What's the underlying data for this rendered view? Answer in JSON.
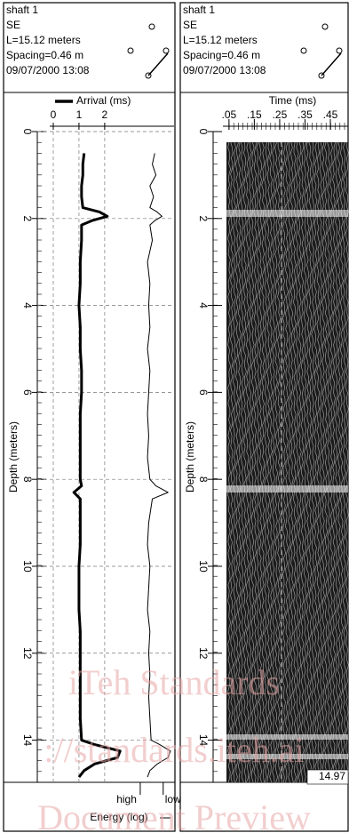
{
  "chart_data": [
    {
      "type": "line",
      "header": [
        "shaft 1",
        "SE",
        "L=15.12 meters",
        "Spacing=0.46 m",
        "09/07/2000 13:08"
      ],
      "ylabel": "Depth (meters)",
      "y": [
        0.5,
        0.75,
        1.0,
        1.25,
        1.5,
        1.75,
        1.85,
        1.95,
        2.05,
        2.15,
        2.5,
        3.0,
        3.5,
        4.0,
        4.5,
        5.0,
        5.5,
        6.0,
        6.5,
        7.0,
        7.5,
        8.0,
        8.15,
        8.3,
        8.45,
        9.0,
        9.5,
        10.0,
        10.5,
        11.0,
        11.5,
        12.0,
        12.5,
        13.0,
        13.5,
        14.0,
        14.1,
        14.25,
        14.4,
        14.55,
        14.7,
        14.85
      ],
      "ylim": [
        0,
        14.97
      ],
      "yticks": [
        0,
        2,
        4,
        6,
        8,
        10,
        12,
        14
      ],
      "xlim": [
        0,
        4.7
      ],
      "xticks": [
        0,
        1,
        2
      ],
      "x2lim": [
        0,
        1
      ],
      "x2ticks": [
        {
          "value": 0.72,
          "label": "high"
        },
        {
          "value": 0.91,
          "label": "low"
        }
      ],
      "grid": true,
      "series": [
        {
          "name": "Arrival (ms)",
          "color": "#000000",
          "values": [
            1.2,
            1.15,
            1.15,
            1.1,
            1.1,
            1.15,
            1.8,
            2.1,
            1.5,
            1.1,
            1.1,
            1.05,
            1.05,
            1.0,
            1.05,
            1.05,
            1.1,
            1.1,
            1.05,
            1.05,
            1.05,
            1.05,
            1.1,
            0.8,
            1.05,
            1.05,
            1.05,
            1.0,
            1.0,
            1.0,
            1.05,
            1.05,
            1.05,
            1.05,
            1.05,
            1.1,
            1.6,
            2.6,
            2.5,
            1.6,
            1.2,
            1.0
          ]
        },
        {
          "name": "Energy (log)",
          "color": "#000000",
          "axis": "x2",
          "values": [
            0.84,
            0.82,
            0.85,
            0.8,
            0.83,
            0.8,
            0.86,
            0.9,
            0.84,
            0.8,
            0.82,
            0.78,
            0.8,
            0.79,
            0.8,
            0.78,
            0.8,
            0.79,
            0.78,
            0.79,
            0.78,
            0.8,
            0.85,
            0.95,
            0.82,
            0.79,
            0.78,
            0.8,
            0.79,
            0.78,
            0.8,
            0.79,
            0.8,
            0.79,
            0.8,
            0.81,
            0.88,
            0.97,
            0.95,
            0.86,
            0.8,
            0.78
          ]
        }
      ]
    },
    {
      "type": "waveform",
      "header": [
        "shaft 1",
        "SE",
        "L=15.12 meters",
        "Spacing=0.46 m",
        "09/07/2000 13:08"
      ],
      "ylabel": "Depth (meters)",
      "xlabel": "Time (ms)",
      "ylim": [
        0,
        14.97
      ],
      "yticks": [
        0,
        2,
        4,
        6,
        8,
        10,
        12,
        14
      ],
      "xlim": [
        0.04,
        0.52
      ],
      "xticks": [
        {
          "value": 0.05,
          "label": ".05"
        },
        {
          "value": 0.15,
          "label": ".15"
        },
        {
          "value": 0.25,
          "label": ".25"
        },
        {
          "value": 0.35,
          "label": ".35"
        },
        {
          "value": 0.45,
          "label": ".45"
        }
      ],
      "depth_label": 14.97
    }
  ],
  "watermark": [
    "iTeh Standards",
    "://standards.iteh.ai",
    "Document Preview"
  ]
}
